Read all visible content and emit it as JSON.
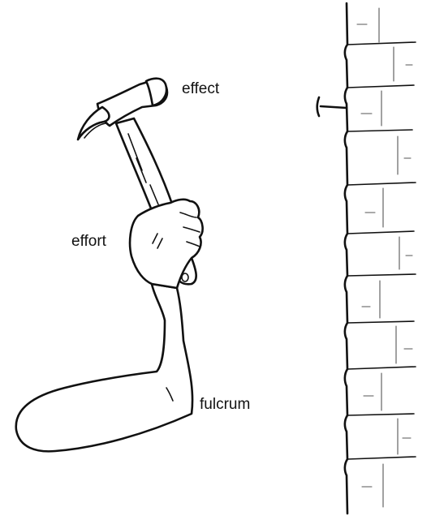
{
  "labels": {
    "effect": "effect",
    "effort": "effort",
    "fulcrum": "fulcrum"
  },
  "colors": {
    "ink": "#111111",
    "background": "#ffffff"
  }
}
